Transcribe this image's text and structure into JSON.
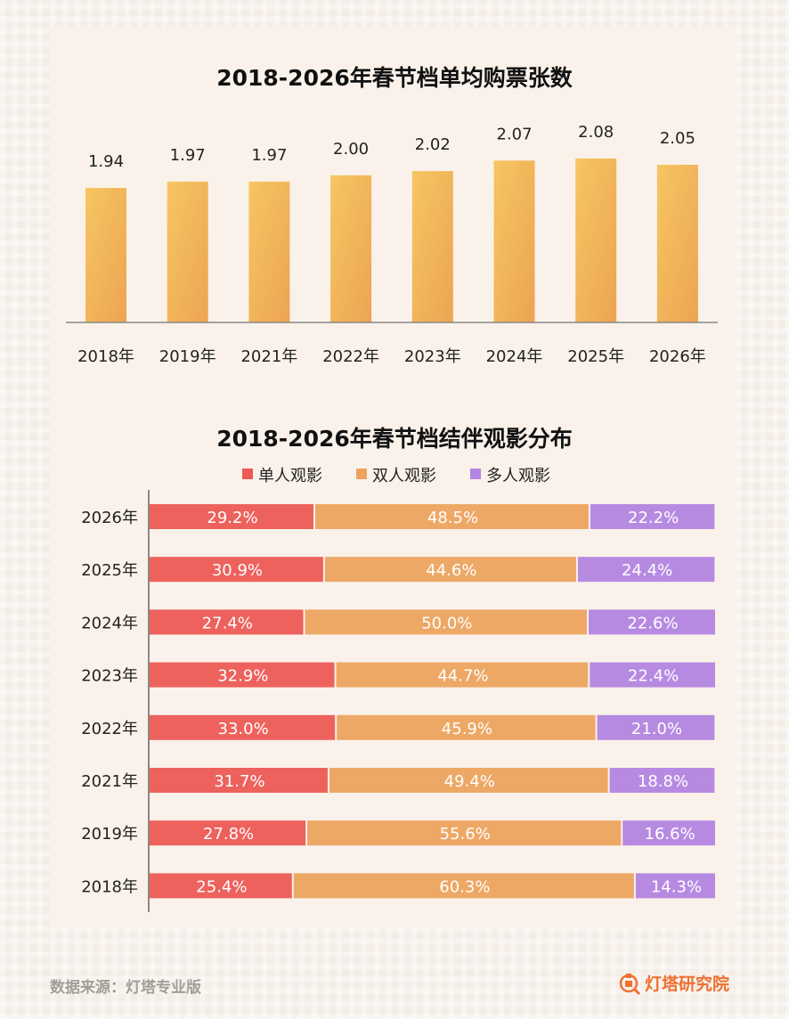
{
  "chart_data": [
    {
      "type": "bar",
      "title": "2018-2026年春节档单均购票张数",
      "categories": [
        "2018年",
        "2019年",
        "2021年",
        "2022年",
        "2023年",
        "2024年",
        "2025年",
        "2026年"
      ],
      "values": [
        1.94,
        1.97,
        1.97,
        2.0,
        2.02,
        2.07,
        2.08,
        2.05
      ],
      "value_labels": [
        "1.94",
        "1.97",
        "1.97",
        "2.00",
        "2.02",
        "2.07",
        "2.08",
        "2.05"
      ],
      "ylim": [
        1.3,
        2.3
      ],
      "grid": false,
      "colors": {
        "bar_top": "#f6c260",
        "bar_bottom": "#eeaa55"
      }
    },
    {
      "type": "bar",
      "stacked": true,
      "orientation": "horizontal",
      "title": "2018-2026年春节档结伴观影分布",
      "categories": [
        "2026年",
        "2025年",
        "2024年",
        "2023年",
        "2022年",
        "2021年",
        "2019年",
        "2018年"
      ],
      "legend_position": "top",
      "series": [
        {
          "name": "单人观影",
          "color": "#ec5a55",
          "values": [
            29.2,
            30.9,
            27.4,
            32.9,
            33.0,
            31.7,
            27.8,
            25.4
          ],
          "labels": [
            "29.2%",
            "30.9%",
            "27.4%",
            "32.9%",
            "33.0%",
            "31.7%",
            "27.8%",
            "25.4%"
          ]
        },
        {
          "name": "双人观影",
          "color": "#eca35f",
          "values": [
            48.5,
            44.6,
            50.0,
            44.7,
            45.9,
            49.4,
            55.6,
            60.3
          ],
          "labels": [
            "48.5%",
            "44.6%",
            "50.0%",
            "44.7%",
            "45.9%",
            "49.4%",
            "55.6%",
            "60.3%"
          ]
        },
        {
          "name": "多人观影",
          "color": "#b384e2",
          "values": [
            22.2,
            24.4,
            22.6,
            22.4,
            21.0,
            18.8,
            16.6,
            14.3
          ],
          "labels": [
            "22.2%",
            "24.4%",
            "22.6%",
            "22.4%",
            "21.0%",
            "18.8%",
            "16.6%",
            "14.3%"
          ]
        }
      ]
    }
  ],
  "footer": {
    "source": "数据来源：灯塔专业版",
    "brand": "灯塔研究院"
  }
}
